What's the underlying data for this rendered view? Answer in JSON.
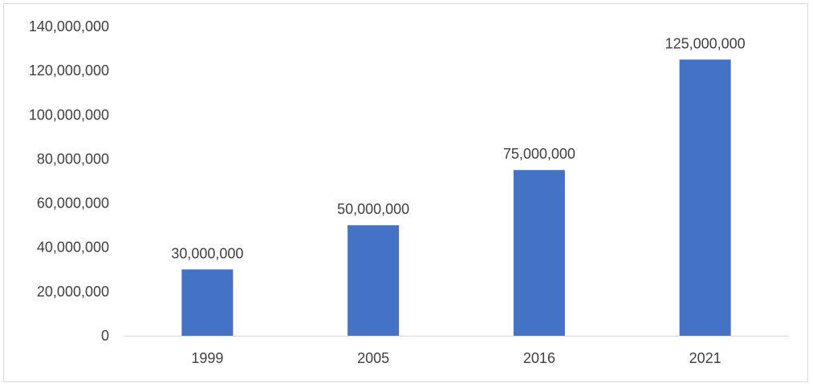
{
  "chart_data": {
    "type": "bar",
    "categories": [
      "1999",
      "2005",
      "2016",
      "2021"
    ],
    "values": [
      30000000,
      50000000,
      75000000,
      125000000
    ],
    "data_labels": [
      "30,000,000",
      "50,000,000",
      "75,000,000",
      "125,000,000"
    ],
    "y_ticks": [
      0,
      20000000,
      40000000,
      60000000,
      80000000,
      100000000,
      120000000,
      140000000
    ],
    "y_tick_labels": [
      "0",
      "20,000,000",
      "40,000,000",
      "60,000,000",
      "80,000,000",
      "100,000,000",
      "120,000,000",
      "140,000,000"
    ],
    "ylim": [
      0,
      140000000
    ],
    "grid": false,
    "legend": "none",
    "colors": {
      "bar": "#4472C4",
      "axis": "#d9d9d9",
      "text": "#404040"
    }
  }
}
